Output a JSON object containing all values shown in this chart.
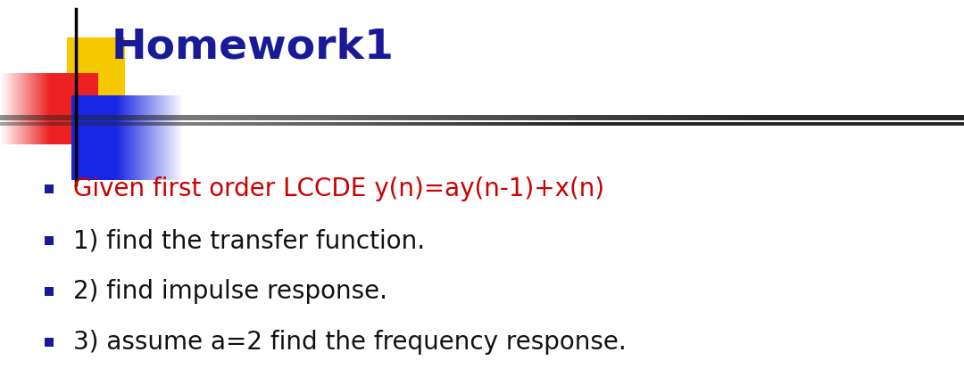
{
  "title": "Homework1",
  "title_color": "#1a1a99",
  "title_fontsize": 34,
  "bullet_items": [
    {
      "text": "Given first order LCCDE y(n)=ay(n-1)+x(n)",
      "color": "#cc0000",
      "fontsize": 20
    },
    {
      "text": "1) find the transfer function.",
      "color": "#111111",
      "fontsize": 20
    },
    {
      "text": "2) find impulse response.",
      "color": "#111111",
      "fontsize": 20
    },
    {
      "text": "3) assume a=2 find the frequency response.",
      "color": "#111111",
      "fontsize": 20
    }
  ],
  "bullet_color": "#1a1a99",
  "background_color": "#ffffff",
  "logo_yellow": "#f5c800",
  "logo_red_center": "#ee2222",
  "logo_red_edge": "#ffffff",
  "logo_blue_center": "#2233cc",
  "logo_blue_edge": "#ffffff",
  "separator_color_left": "#222222",
  "separator_color_right": "#aaaaaa"
}
